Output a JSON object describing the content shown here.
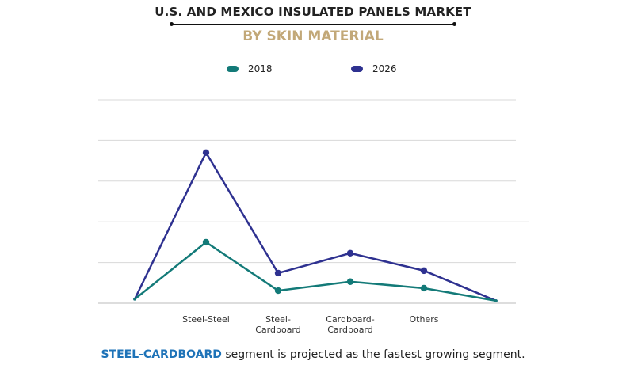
{
  "header": {
    "title": "U.S. AND MEXICO INSULATED PANELS MARKET",
    "subtitle": "BY SKIN MATERIAL"
  },
  "chart_data": {
    "type": "line",
    "categories": [
      "",
      "Steel-Steel",
      "Steel-\nCardboard",
      "Cardboard-\nCardboard",
      "Others",
      ""
    ],
    "series": [
      {
        "name": "2018",
        "color": "#137a78",
        "values": [
          0.1,
          1.5,
          0.31,
          0.53,
          0.37,
          0.06
        ]
      },
      {
        "name": "2026",
        "color": "#2e3190",
        "values": [
          0.1,
          3.7,
          0.74,
          1.23,
          0.8,
          0.06
        ]
      }
    ],
    "ylim": [
      0,
      5
    ],
    "grid": true,
    "legend": "top-center"
  },
  "footer": {
    "highlight": "STEEL-CARDBOARD",
    "text": " segment is projected as the fastest growing segment."
  }
}
